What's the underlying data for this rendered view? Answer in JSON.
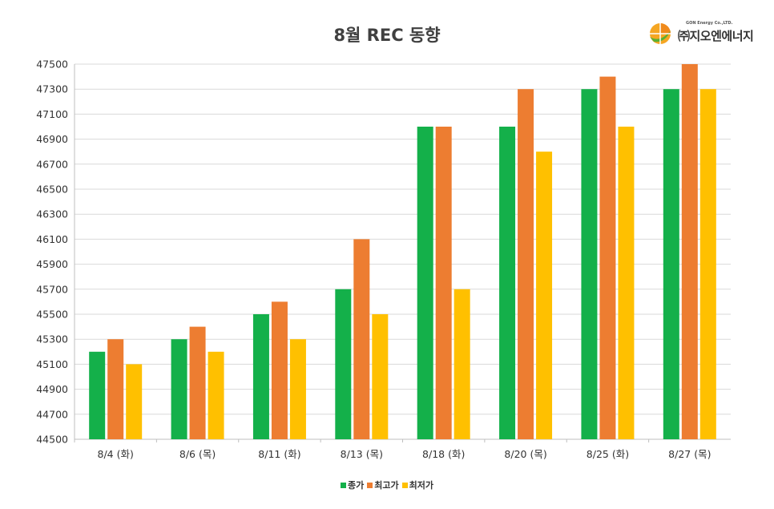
{
  "header": {
    "title": "8월 REC 동향",
    "logo_tagline": "GON Energy Co.,LTD.",
    "logo_name": "㈜지오엔에너지",
    "logo_colors": [
      "#f5a623",
      "#f08a1c",
      "#5ab033"
    ]
  },
  "chart_data": {
    "type": "bar",
    "title": "8월 REC 동향",
    "xlabel": "",
    "ylabel": "",
    "categories": [
      "8/4 (화)",
      "8/6 (목)",
      "8/11 (화)",
      "8/13 (목)",
      "8/18 (화)",
      "8/20 (목)",
      "8/25 (화)",
      "8/27 (목)"
    ],
    "series": [
      {
        "name": "종가",
        "color": "#14b04a",
        "values": [
          45200,
          45300,
          45500,
          45700,
          47000,
          47000,
          47300,
          47300
        ]
      },
      {
        "name": "최고가",
        "color": "#ed7d31",
        "values": [
          45300,
          45400,
          45600,
          46100,
          47000,
          47300,
          47400,
          47500
        ]
      },
      {
        "name": "최저가",
        "color": "#ffc000",
        "values": [
          45100,
          45200,
          45300,
          45500,
          45700,
          46800,
          47000,
          47300
        ]
      }
    ],
    "ylim": [
      44500,
      47500
    ],
    "yticks": [
      44500,
      44700,
      44900,
      45100,
      45300,
      45500,
      45700,
      45900,
      46100,
      46300,
      46500,
      46700,
      46900,
      47100,
      47300,
      47500
    ],
    "grid": true,
    "legend_position": "bottom"
  }
}
